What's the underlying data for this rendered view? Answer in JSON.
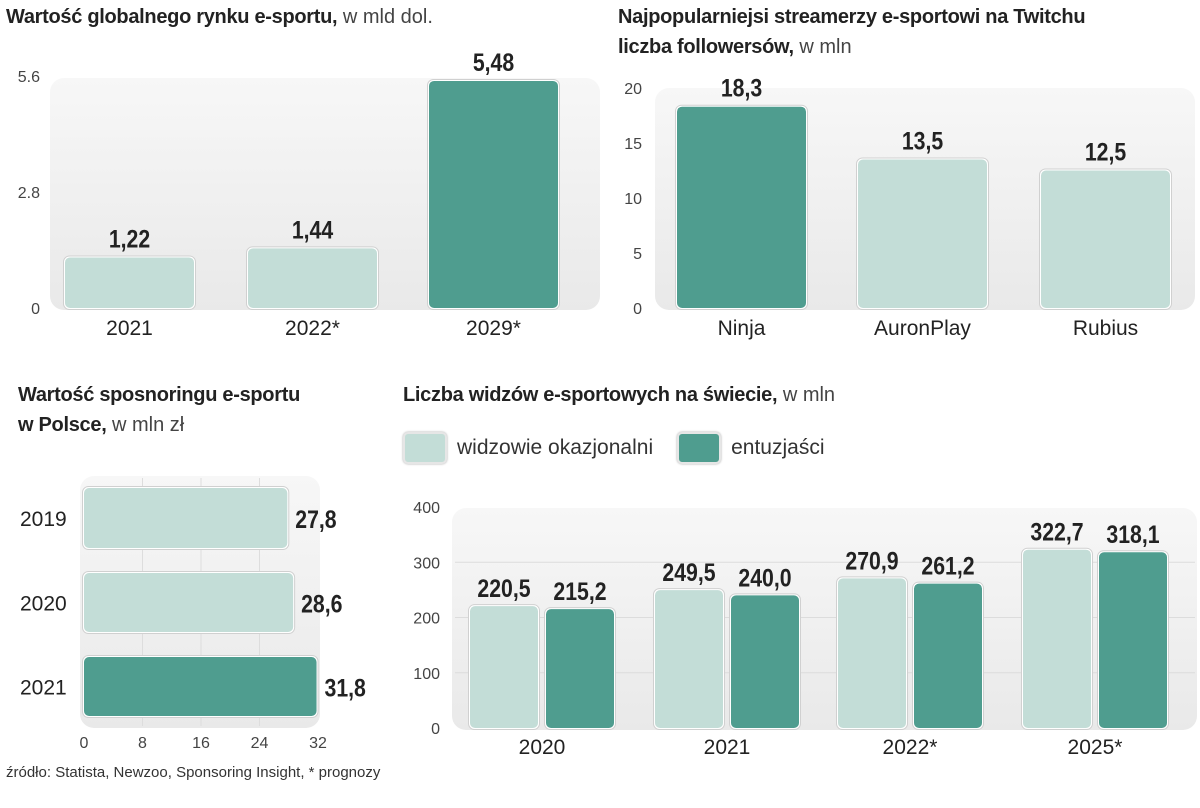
{
  "colors": {
    "light": "#c3ddd7",
    "dark": "#4f9d8f",
    "panel": "#efefef"
  },
  "chart_data": [
    {
      "type": "bar",
      "title": "Wartość globalnego rynku e-sportu,",
      "subtitle": "w mld dol.",
      "categories": [
        "2021",
        "2022*",
        "2029*"
      ],
      "values": [
        1.22,
        1.44,
        5.48
      ],
      "value_labels": [
        "1,22",
        "1,44",
        "5,48"
      ],
      "highlight": [
        false,
        false,
        true
      ],
      "yticks": [
        "0",
        "2.8",
        "5.6"
      ],
      "ylim": [
        0,
        5.6
      ]
    },
    {
      "type": "bar",
      "title": "Najpopularniejsi streamerzy e-sportowi na Twitchu",
      "title2": "liczba followersów,",
      "subtitle": "w mln",
      "categories": [
        "Ninja",
        "AuronPlay",
        "Rubius"
      ],
      "values": [
        18.3,
        13.5,
        12.5
      ],
      "value_labels": [
        "18,3",
        "13,5",
        "12,5"
      ],
      "highlight": [
        true,
        false,
        false
      ],
      "yticks": [
        "0",
        "5",
        "10",
        "15",
        "20"
      ],
      "ylim": [
        0,
        20
      ]
    },
    {
      "type": "bar",
      "orientation": "horizontal",
      "title": "Wartość sposnoringu e-sportu",
      "title2": "w Polsce,",
      "subtitle": "w mln zł",
      "categories": [
        "2019",
        "2020",
        "2021"
      ],
      "values": [
        27.8,
        28.6,
        31.8
      ],
      "value_labels": [
        "27,8",
        "28,6",
        "31,8"
      ],
      "highlight": [
        false,
        false,
        true
      ],
      "xticks": [
        "0",
        "8",
        "16",
        "24",
        "32"
      ],
      "xlim": [
        0,
        32
      ]
    },
    {
      "type": "bar",
      "title": "Liczba widzów e-sportowych na świecie,",
      "subtitle": "w mln",
      "categories": [
        "2020",
        "2021",
        "2022*",
        "2025*"
      ],
      "series": [
        {
          "name": "widzowie okazjonalni",
          "values": [
            220.5,
            249.5,
            270.9,
            322.7
          ],
          "value_labels": [
            "220,5",
            "249,5",
            "270,9",
            "322,7"
          ]
        },
        {
          "name": "entuzjaści",
          "values": [
            215.2,
            240.0,
            261.2,
            318.1
          ],
          "value_labels": [
            "215,2",
            "240,0",
            "261,2",
            "318,1"
          ]
        }
      ],
      "yticks": [
        "0",
        "100",
        "200",
        "300",
        "400"
      ],
      "ylim": [
        0,
        400
      ],
      "legend": "top-left"
    }
  ],
  "source": "źródło: Statista, Newzoo, Sponsoring Insight, * prognozy"
}
